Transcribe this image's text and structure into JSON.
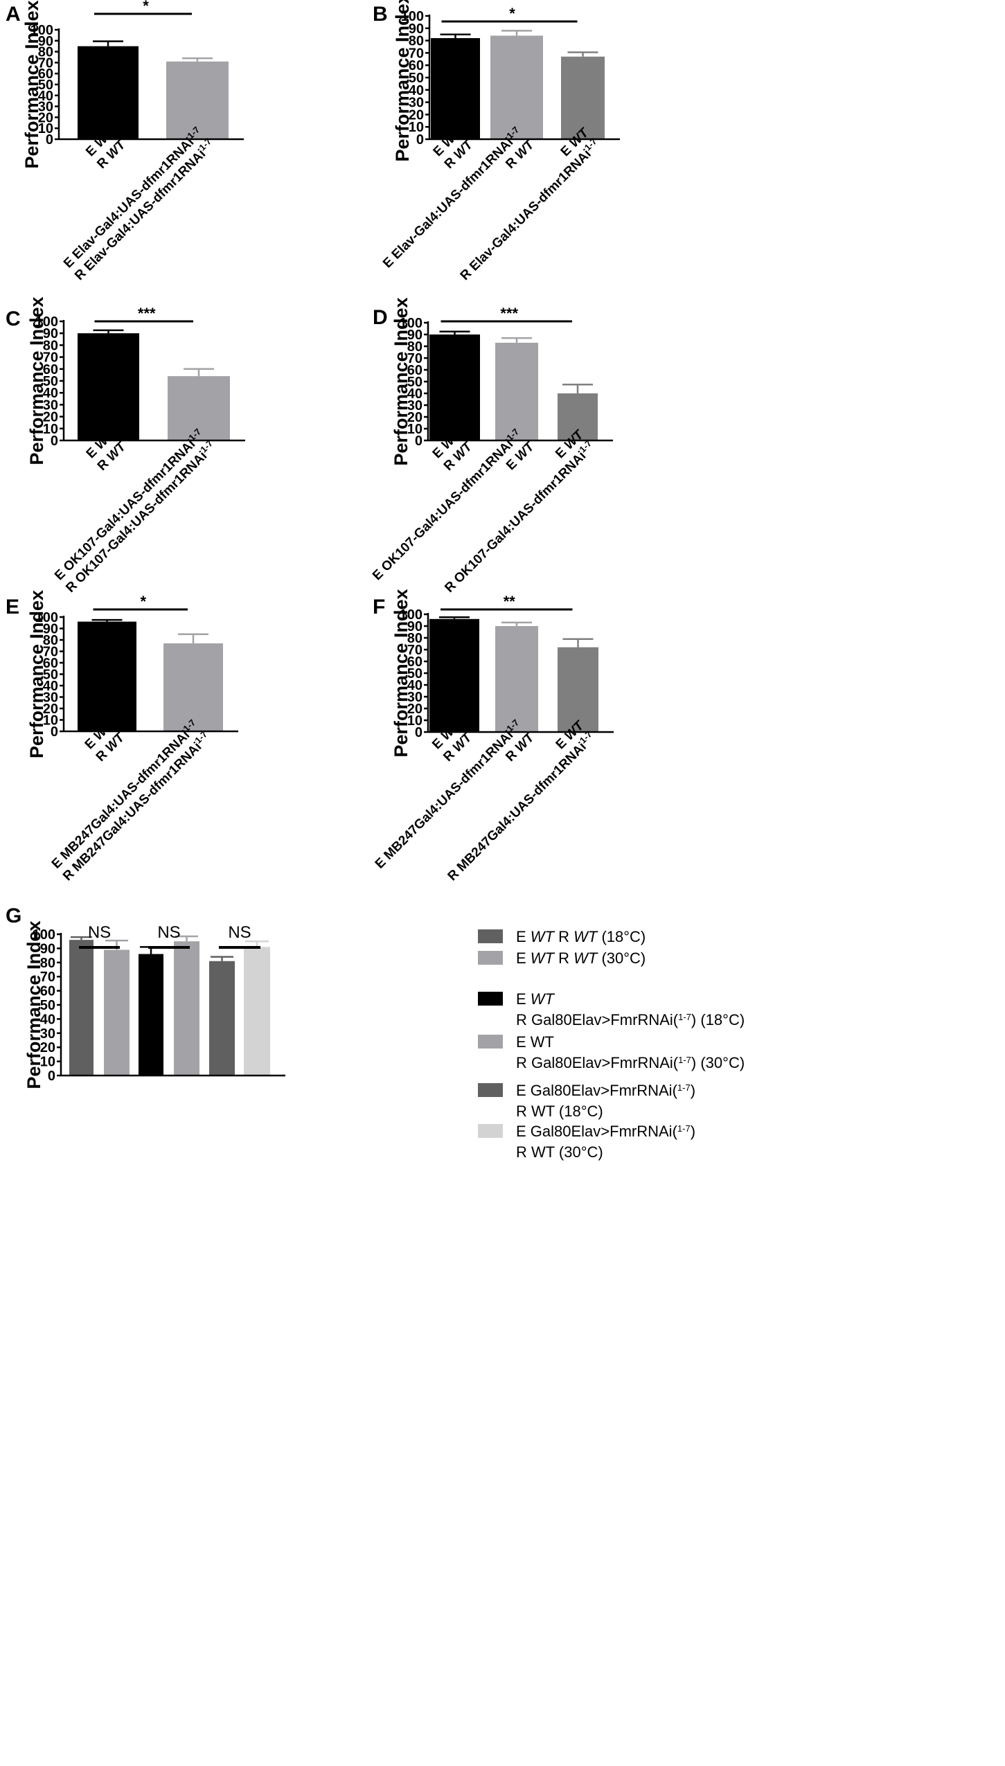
{
  "chart_data": [
    {
      "panel": "A",
      "type": "bar",
      "ylabel": "Performance Index",
      "ylim": [
        0,
        100
      ],
      "yticks": [
        0,
        10,
        20,
        30,
        40,
        50,
        60,
        70,
        80,
        90,
        100
      ],
      "categories": [
        [
          "E WT",
          "R WT"
        ],
        [
          "E Elav-Gal4:UAS-dfmr1RNAi1-7",
          "R Elav-Gal4:UAS-dfmr1RNAi1-7"
        ]
      ],
      "values": [
        85,
        71
      ],
      "errors": [
        4.5,
        3
      ],
      "colors": [
        "#000000",
        "#a3a3a7"
      ],
      "significance": [
        {
          "from": 0,
          "to": 1,
          "label": "*"
        }
      ]
    },
    {
      "panel": "B",
      "type": "bar",
      "ylabel": "Performance Index",
      "ylim": [
        0,
        100
      ],
      "yticks": [
        0,
        10,
        20,
        30,
        40,
        50,
        60,
        70,
        80,
        90,
        100
      ],
      "categories": [
        [
          "E WT",
          "R WT"
        ],
        [
          "E Elav-Gal4:UAS-dfmr1RNAi1-7",
          "R WT"
        ],
        [
          "E WT",
          "R Elav-Gal4:UAS-dfmr1RNAi1-7"
        ]
      ],
      "values": [
        82,
        84,
        67
      ],
      "errors": [
        3,
        4,
        3.5
      ],
      "colors": [
        "#000000",
        "#a3a3a7",
        "#7f7f7f"
      ],
      "significance": [
        {
          "from": 0,
          "to": 2,
          "label": "*"
        }
      ]
    },
    {
      "panel": "C",
      "type": "bar",
      "ylabel": "Performance Index",
      "ylim": [
        0,
        100
      ],
      "yticks": [
        0,
        10,
        20,
        30,
        40,
        50,
        60,
        70,
        80,
        90,
        100
      ],
      "categories": [
        [
          "E WT",
          "R WT"
        ],
        [
          "E OK107-Gal4:UAS-dfmr1RNAi1-7",
          "R OK107-Gal4:UAS-dfmr1RNAi1-7"
        ]
      ],
      "values": [
        90,
        54
      ],
      "errors": [
        2.5,
        6
      ],
      "colors": [
        "#000000",
        "#a3a3a7"
      ],
      "significance": [
        {
          "from": 0,
          "to": 1,
          "label": "***"
        }
      ]
    },
    {
      "panel": "D",
      "type": "bar",
      "ylabel": "Performance Index",
      "ylim": [
        0,
        100
      ],
      "yticks": [
        0,
        10,
        20,
        30,
        40,
        50,
        60,
        70,
        80,
        90,
        100
      ],
      "categories": [
        [
          "E WT",
          "R WT"
        ],
        [
          "E OK107-Gal4:UAS-dfmr1RNAi1-7",
          "E WT"
        ],
        [
          "E WT",
          "R OK107-Gal4:UAS-dfmr1RNAi1-7"
        ]
      ],
      "values": [
        90,
        83,
        40
      ],
      "errors": [
        2.5,
        4,
        7.5
      ],
      "colors": [
        "#000000",
        "#a3a3a7",
        "#7f7f7f"
      ],
      "significance": [
        {
          "from": 0,
          "to": 2,
          "label": "***"
        }
      ]
    },
    {
      "panel": "E",
      "type": "bar",
      "ylabel": "Performance Index",
      "ylim": [
        0,
        100
      ],
      "yticks": [
        0,
        10,
        20,
        30,
        40,
        50,
        60,
        70,
        80,
        90,
        100
      ],
      "categories": [
        [
          "E WT",
          "R WT"
        ],
        [
          "E MB247Gal4:UAS-dfmr1RNAi1-7",
          "R MB247Gal4:UAS-dfmr1RNAi1-7"
        ]
      ],
      "values": [
        96,
        77
      ],
      "errors": [
        1.5,
        8
      ],
      "colors": [
        "#000000",
        "#a3a3a7"
      ],
      "significance": [
        {
          "from": 0,
          "to": 1,
          "label": "*"
        }
      ]
    },
    {
      "panel": "F",
      "type": "bar",
      "ylabel": "Performance Index",
      "ylim": [
        0,
        100
      ],
      "yticks": [
        0,
        10,
        20,
        30,
        40,
        50,
        60,
        70,
        80,
        90,
        100
      ],
      "categories": [
        [
          "E WT",
          "R WT"
        ],
        [
          "E MB247Gal4:UAS-dfmr1RNAi1-7",
          "R WT"
        ],
        [
          "E WT",
          "R MB247Gal4:UAS-dfmr1RNAi1-7"
        ]
      ],
      "values": [
        96,
        90,
        72
      ],
      "errors": [
        1.5,
        3,
        7
      ],
      "colors": [
        "#000000",
        "#a3a3a7",
        "#7f7f7f"
      ],
      "significance": [
        {
          "from": 0,
          "to": 2,
          "label": "**"
        }
      ]
    },
    {
      "panel": "G",
      "type": "bar",
      "ylabel": "Performance Index",
      "ylim": [
        0,
        100
      ],
      "yticks": [
        0,
        10,
        20,
        30,
        40,
        50,
        60,
        70,
        80,
        90,
        100
      ],
      "values": [
        96,
        89,
        86,
        95,
        81,
        91
      ],
      "errors": [
        2,
        6.5,
        5,
        3.5,
        3,
        4
      ],
      "colors": [
        "#606060",
        "#a3a3a7",
        "#000000",
        "#a3a3a7",
        "#606060",
        "#d3d3d3"
      ],
      "significance": [
        {
          "from": 0,
          "to": 1,
          "label": "NS"
        },
        {
          "from": 2,
          "to": 3,
          "label": "NS"
        },
        {
          "from": 4,
          "to": 5,
          "label": "NS"
        }
      ],
      "legend": [
        {
          "color": "#606060",
          "lines": [
            "E WT  R WT (18°C)"
          ]
        },
        {
          "color": "#a3a3a7",
          "lines": [
            "E WT  R WT (30°C)"
          ]
        },
        {
          "color": "#000000",
          "lines": [
            "E WT",
            "R Gal80Elav>FmrRNAi(1-7) (18°C)"
          ]
        },
        {
          "color": "#a3a3a7",
          "lines": [
            "E WT",
            "R Gal80Elav>FmrRNAi(1-7) (30°C)"
          ]
        },
        {
          "color": "#606060",
          "lines": [
            "E Gal80Elav>FmrRNAi(1-7)",
            "R WT (18°C)"
          ]
        },
        {
          "color": "#d3d3d3",
          "lines": [
            "E Gal80Elav>FmrRNAi(1-7)",
            "R WT (30°C)"
          ]
        }
      ]
    }
  ]
}
